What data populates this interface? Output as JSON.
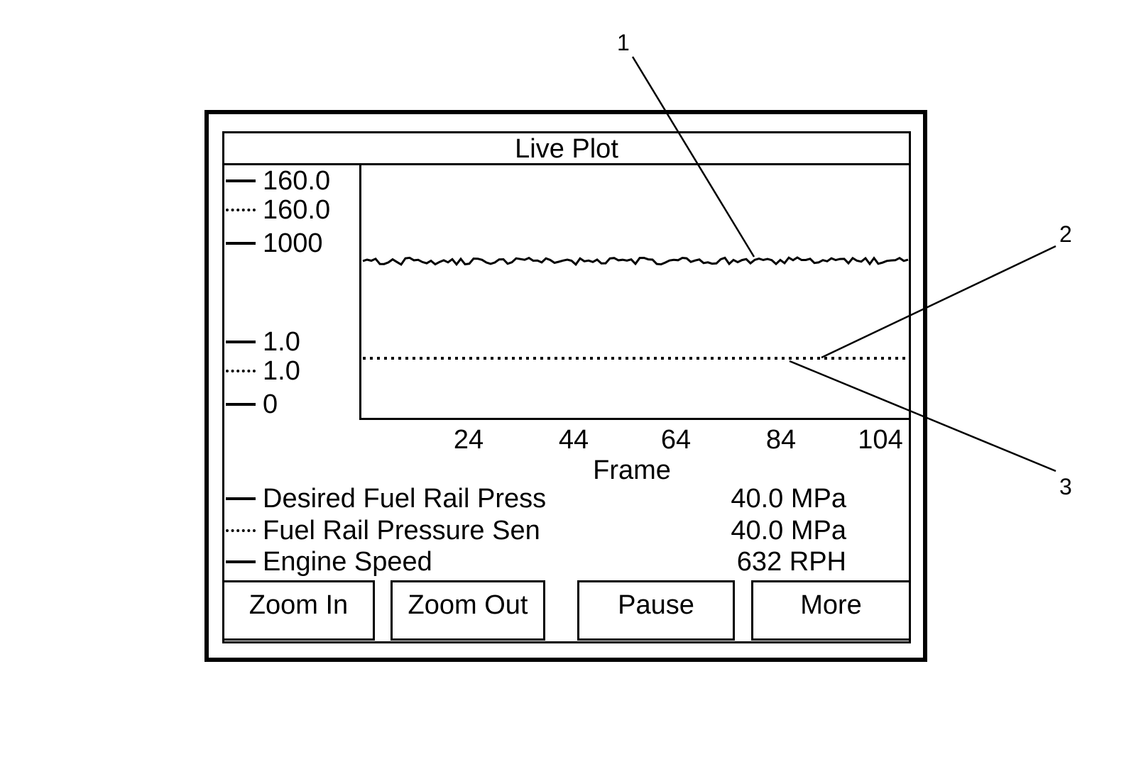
{
  "figure": {
    "callouts": [
      "1",
      "2",
      "3"
    ]
  },
  "screen": {
    "title": "Live Plot",
    "y_axis": {
      "labels": [
        {
          "text": "160.0",
          "marker": "solid"
        },
        {
          "text": "160.0",
          "marker": "dotted"
        },
        {
          "text": "1000",
          "marker": "solid"
        },
        {
          "text": "1.0",
          "marker": "solid"
        },
        {
          "text": "1.0",
          "marker": "dotted"
        },
        {
          "text": "0",
          "marker": "solid"
        }
      ]
    },
    "x_axis": {
      "ticks": [
        "24",
        "44",
        "64",
        "84",
        "104"
      ],
      "label": "Frame"
    },
    "legend": [
      {
        "name": "Desired Fuel Rail Press",
        "value": "40.0 MPa",
        "marker": "solid"
      },
      {
        "name": "Fuel Rail Pressure Sen",
        "value": "40.0 MPa",
        "marker": "dotted"
      },
      {
        "name": "Engine Speed",
        "value": "632 RPH",
        "marker": "solid"
      }
    ],
    "buttons": [
      "Zoom In",
      "Zoom Out",
      "Pause",
      "More"
    ]
  },
  "chart_data": {
    "type": "line",
    "title": "Live Plot",
    "xlabel": "Frame",
    "x_ticks": [
      24,
      44,
      64,
      84,
      104
    ],
    "series": [
      {
        "name": "Desired Fuel Rail Press",
        "style": "solid",
        "current_value": "40.0 MPa",
        "shape": "constant at 40.0 MPa across all frames (coincides with sensor trace)"
      },
      {
        "name": "Fuel Rail Pressure Sen",
        "style": "dotted",
        "current_value": "40.0 MPa",
        "shape": "flat dotted horizontal line at 40.0 MPa across all frames"
      },
      {
        "name": "Engine Speed",
        "style": "solid",
        "current_value": "632 RPH",
        "shape": "noisy but flat trace near 632 across all frames"
      }
    ],
    "legend_position": "below plot",
    "grid": false
  }
}
